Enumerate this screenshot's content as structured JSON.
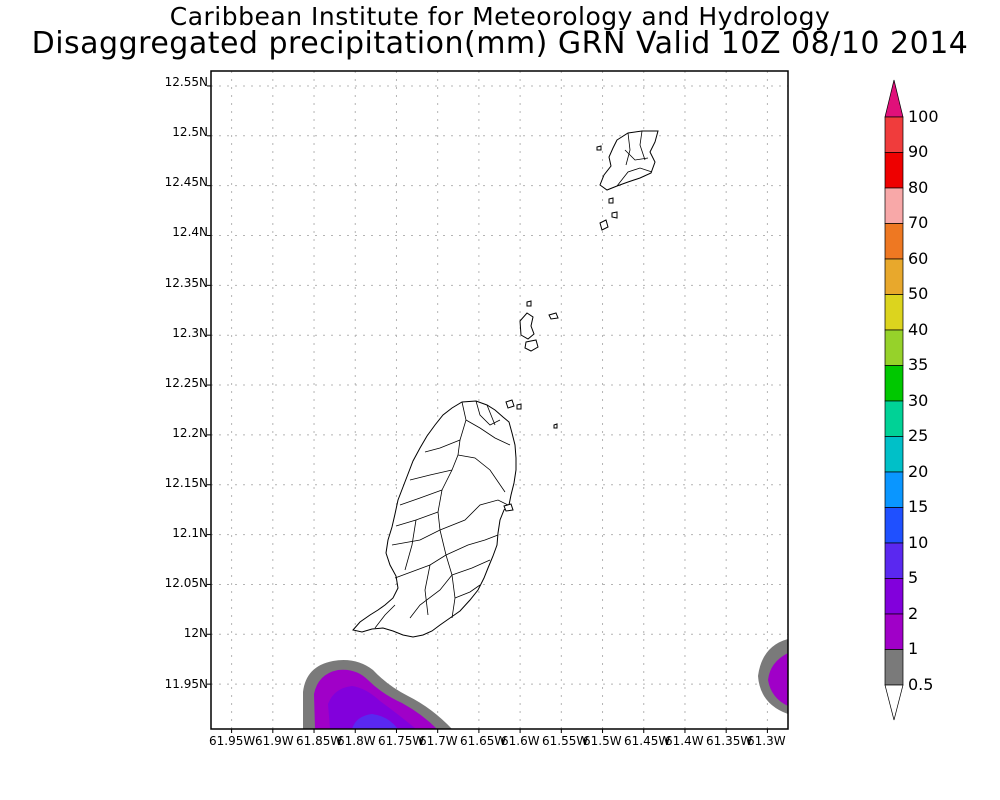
{
  "titles": {
    "line1": "Caribbean Institute for Meteorology and Hydrology",
    "line2": "Disaggregated precipitation(mm) GRN Valid 10Z 08/10 2014"
  },
  "map": {
    "lat_labels": [
      "12.55N",
      "12.5N",
      "12.45N",
      "12.4N",
      "12.35N",
      "12.3N",
      "12.25N",
      "12.2N",
      "12.15N",
      "12.1N",
      "12.05N",
      "12N",
      "11.95N"
    ],
    "lat_values": [
      12.55,
      12.5,
      12.45,
      12.4,
      12.35,
      12.3,
      12.25,
      12.2,
      12.15,
      12.1,
      12.05,
      12.0,
      11.95
    ],
    "lon_labels": [
      "61.95W",
      "61.9W",
      "61.85W",
      "61.8W",
      "61.75W",
      "61.7W",
      "61.65W",
      "61.6W",
      "61.55W",
      "61.5W",
      "61.45W",
      "61.4W",
      "61.35W",
      "61.3W"
    ],
    "lon_values": [
      -61.95,
      -61.9,
      -61.85,
      -61.8,
      -61.75,
      -61.7,
      -61.65,
      -61.6,
      -61.55,
      -61.5,
      -61.45,
      -61.4,
      -61.35,
      -61.3
    ],
    "lat_range": [
      11.905,
      12.565
    ],
    "lon_range": [
      -61.975,
      -61.275
    ],
    "grid": true
  },
  "colorbar": {
    "labels": [
      "100",
      "90",
      "80",
      "70",
      "60",
      "50",
      "40",
      "35",
      "30",
      "25",
      "20",
      "15",
      "10",
      "5",
      "2",
      "1",
      "0.5"
    ],
    "colors": {
      "over": "#e0107a",
      "90_100": "#f03c3c",
      "80_90": "#ee0000",
      "70_80": "#f8a8a8",
      "60_70": "#ee7822",
      "50_60": "#e8a82c",
      "40_50": "#dcd41e",
      "35_40": "#96d22a",
      "30_35": "#00c800",
      "25_30": "#00d296",
      "20_25": "#00c0c8",
      "15_20": "#0a96ff",
      "10_15": "#1f50ff",
      "5_10": "#5a28f0",
      "2_5": "#8200dc",
      "1_2": "#a000c8",
      "0.5_1": "#7a7a7a",
      "under": "#ffffff"
    }
  }
}
